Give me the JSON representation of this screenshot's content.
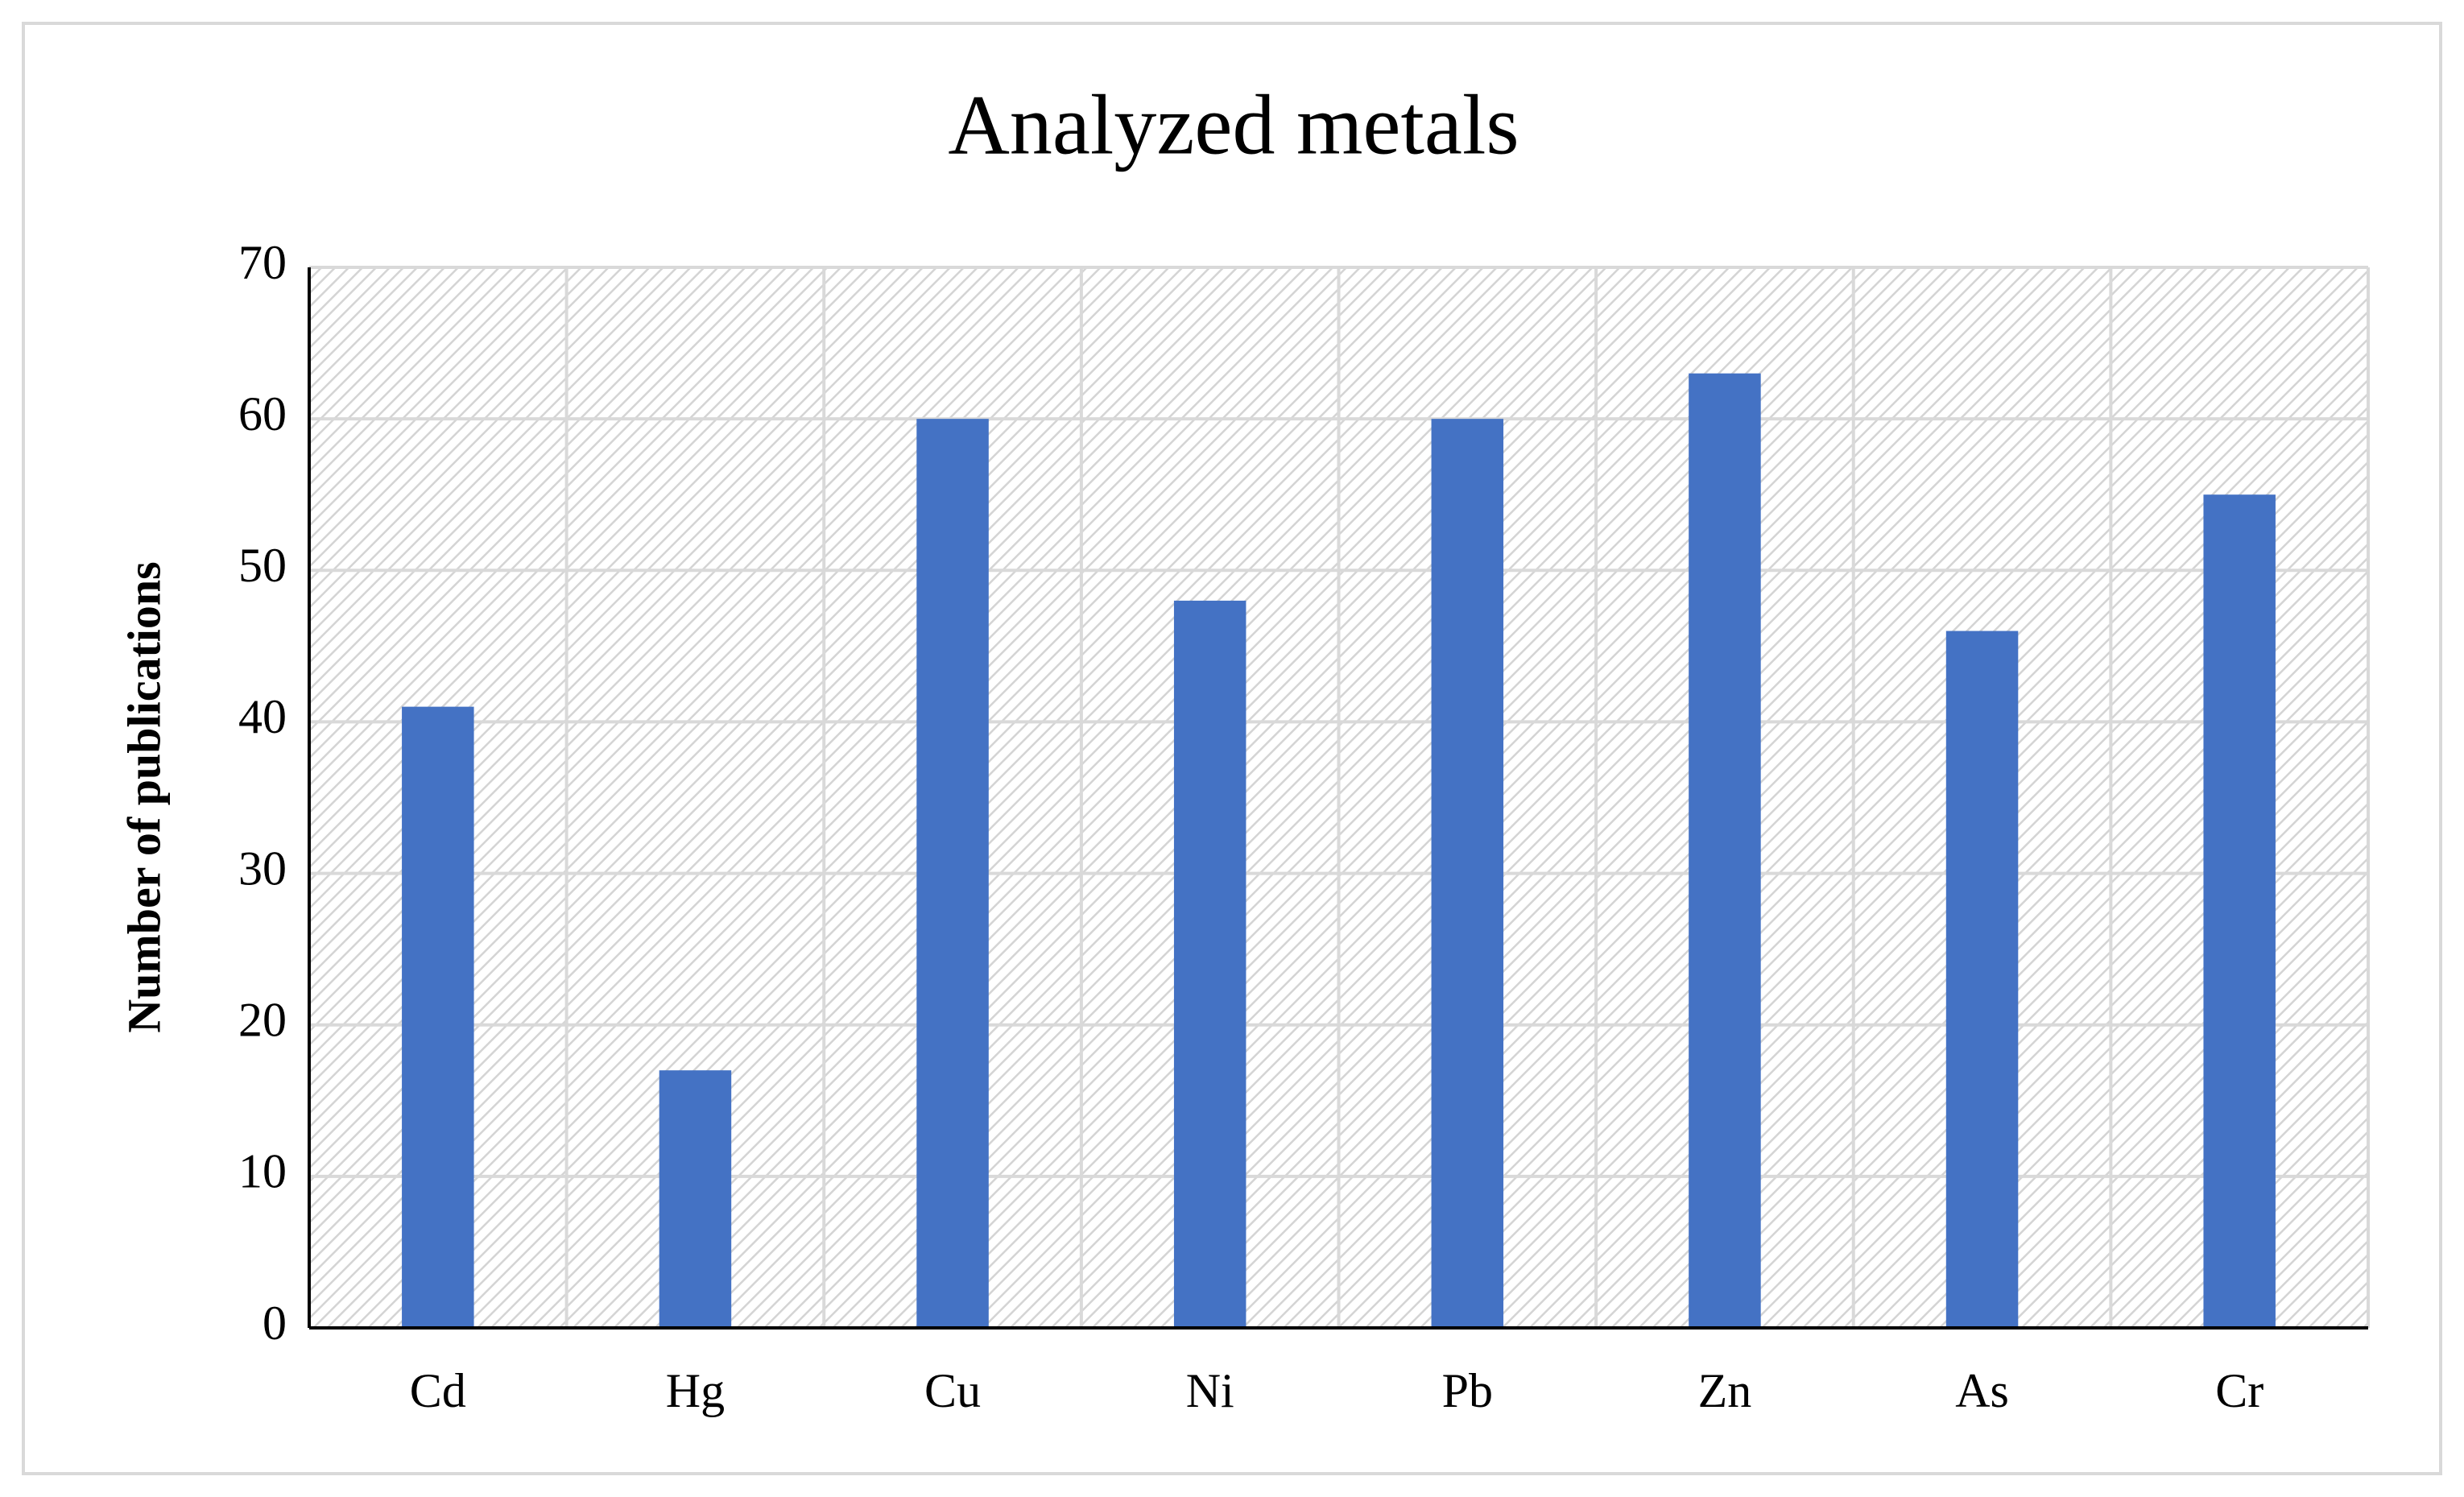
{
  "chart_data": {
    "type": "bar",
    "title": "Analyzed metals",
    "y_label": "Number of publications",
    "categories": [
      "Cd",
      "Hg",
      "Cu",
      "Ni",
      "Pb",
      "Zn",
      "As",
      "Cr"
    ],
    "values": [
      41,
      17,
      60,
      48,
      60,
      63,
      46,
      55
    ],
    "color": "#4472c4",
    "ylim": [
      0,
      70
    ],
    "yticks": [
      0,
      10,
      20,
      30,
      40,
      50,
      60,
      70
    ],
    "grid": true
  }
}
